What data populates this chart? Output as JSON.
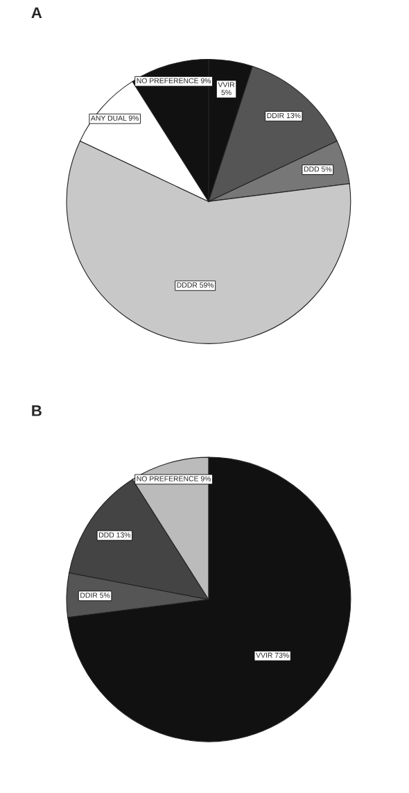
{
  "chart_data": [
    {
      "type": "pie",
      "title": "A",
      "categories": [
        "VVIR",
        "DDIR",
        "DDD",
        "DDDR",
        "ANY DUAL",
        "NO PREFERENCE"
      ],
      "values": [
        5,
        13,
        5,
        59,
        9,
        9
      ],
      "value_labels": [
        "5%",
        "13%",
        "5%",
        "59%",
        "9%",
        "9%"
      ],
      "colors": [
        "#111111",
        "#555555",
        "#777777",
        "#c8c8c8",
        "#ffffff",
        "#111111"
      ]
    },
    {
      "type": "pie",
      "title": "B",
      "categories": [
        "VVIR",
        "DDIR",
        "DDD",
        "NO PREFERENCE"
      ],
      "values": [
        73,
        5,
        13,
        9
      ],
      "value_labels": [
        "73%",
        "5%",
        "13%",
        "9%"
      ],
      "colors": [
        "#111111",
        "#555555",
        "#444444",
        "#bbbbbb"
      ]
    }
  ]
}
